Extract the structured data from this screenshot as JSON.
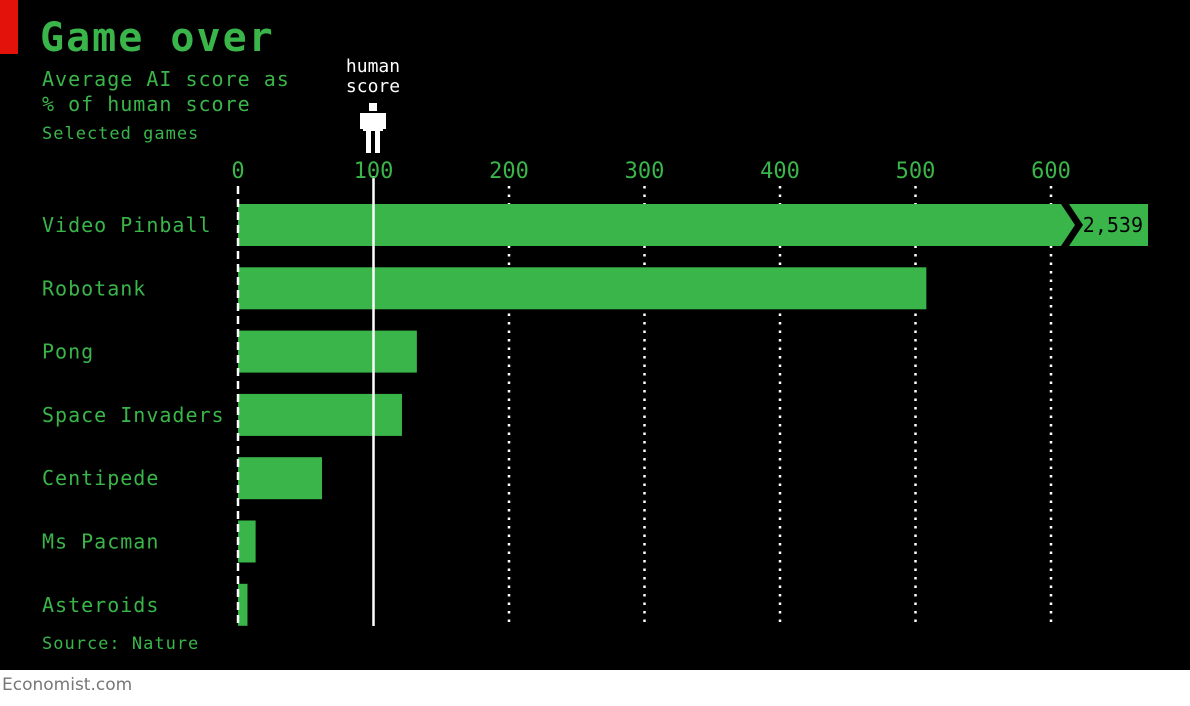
{
  "header": {
    "title": "Game over",
    "subtitle_line1": "Average AI score as",
    "subtitle_line2": "% of human score",
    "subtitle_line3": "Selected games",
    "human_label_line1": "human",
    "human_label_line2": "score",
    "human_icon": "human-figure-icon"
  },
  "source": "Source: Nature",
  "footer": "Economist.com",
  "colors": {
    "background": "#000000",
    "bar": "#3ab54a",
    "text": "#3ab54a",
    "reference_line": "#ffffff",
    "brand_tag": "#e3120b"
  },
  "chart_data": {
    "type": "bar",
    "orientation": "horizontal",
    "categories": [
      "Video Pinball",
      "Robotank",
      "Pong",
      "Space Invaders",
      "Centipede",
      "Ms Pacman",
      "Asteroids"
    ],
    "values": [
      2539,
      508,
      132,
      121,
      62,
      13,
      7
    ],
    "value_labels": [
      "2,539",
      "",
      "",
      "",
      "",
      "",
      ""
    ],
    "truncated": [
      true,
      false,
      false,
      false,
      false,
      false,
      false
    ],
    "xlim": [
      0,
      675
    ],
    "x_ticks": [
      0,
      100,
      200,
      300,
      400,
      500,
      600
    ],
    "x_tick_labels": [
      "0",
      "100",
      "200",
      "300",
      "400",
      "500",
      "600"
    ],
    "reference_line": {
      "value": 100,
      "label": "human score"
    },
    "grid": "dotted vertical",
    "legend": "none"
  }
}
